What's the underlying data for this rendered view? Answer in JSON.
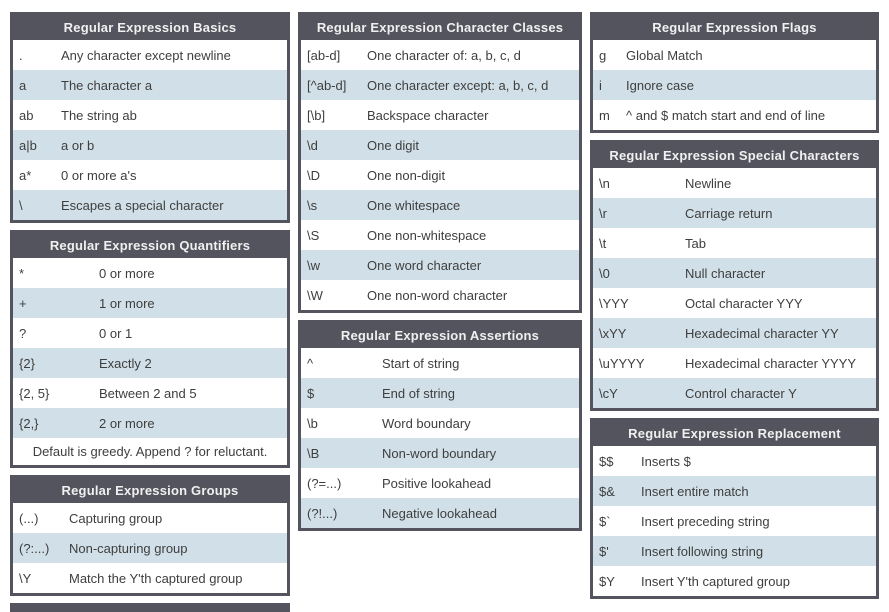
{
  "theme": {
    "header_bg": "#54545e",
    "border_color": "#54545e",
    "alt_row_bg": "#d1e0e8",
    "row_bg": "#ffffff",
    "text_color": "#3e3e3e",
    "header_text_color": "#f0f0f0"
  },
  "tables": {
    "basics": {
      "title": "Regular Expression Basics",
      "rows": [
        [
          ".",
          "Any character except newline"
        ],
        [
          "a",
          "The character a"
        ],
        [
          "ab",
          "The string ab"
        ],
        [
          "a|b",
          "a or b"
        ],
        [
          "a*",
          "0 or more a's"
        ],
        [
          "\\",
          "Escapes a special character"
        ]
      ]
    },
    "quantifiers": {
      "title": "Regular Expression Quantifiers",
      "rows": [
        [
          "*",
          "0 or more"
        ],
        [
          "+",
          "1 or more"
        ],
        [
          "?",
          "0 or 1"
        ],
        [
          "{2}",
          "Exactly 2"
        ],
        [
          "{2, 5}",
          "Between 2 and 5"
        ],
        [
          "{2,}",
          "2 or more"
        ]
      ],
      "note": "Default is greedy. Append ? for reluctant."
    },
    "groups": {
      "title": "Regular Expression Groups",
      "rows": [
        [
          "(...)",
          "Capturing group"
        ],
        [
          "(?:...)",
          "Non-capturing group"
        ],
        [
          "\\Y",
          "Match the Y'th captured group"
        ]
      ]
    },
    "character_classes": {
      "title": "Regular Expression Character Classes",
      "rows": [
        [
          "[ab-d]",
          "One character of: a, b, c, d"
        ],
        [
          "[^ab-d]",
          "One character except: a, b, c, d"
        ],
        [
          "[\\b]",
          "Backspace character"
        ],
        [
          "\\d",
          "One digit"
        ],
        [
          "\\D",
          "One non-digit"
        ],
        [
          "\\s",
          "One whitespace"
        ],
        [
          "\\S",
          "One non-whitespace"
        ],
        [
          "\\w",
          "One word character"
        ],
        [
          "\\W",
          "One non-word character"
        ]
      ]
    },
    "assertions": {
      "title": "Regular Expression Assertions",
      "rows": [
        [
          "^",
          "Start of string"
        ],
        [
          "$",
          "End of string"
        ],
        [
          "\\b",
          "Word boundary"
        ],
        [
          "\\B",
          "Non-word boundary"
        ],
        [
          "(?=...)",
          "Positive lookahead"
        ],
        [
          "(?!...)",
          "Negative lookahead"
        ]
      ]
    },
    "flags": {
      "title": "Regular Expression Flags",
      "rows": [
        [
          "g",
          "Global Match"
        ],
        [
          "i",
          "Ignore case"
        ],
        [
          "m",
          "^ and $ match start and end of line"
        ]
      ]
    },
    "special_characters": {
      "title": "Regular Expression Special Characters",
      "rows": [
        [
          "\\n",
          "Newline"
        ],
        [
          "\\r",
          "Carriage return"
        ],
        [
          "\\t",
          "Tab"
        ],
        [
          "\\0",
          "Null character"
        ],
        [
          "\\YYY",
          "Octal character YYY"
        ],
        [
          "\\xYY",
          "Hexadecimal character YY"
        ],
        [
          "\\uYYYY",
          "Hexadecimal character YYYY"
        ],
        [
          "\\cY",
          "Control character Y"
        ]
      ]
    },
    "replacement": {
      "title": "Regular Expression Replacement",
      "rows": [
        [
          "$$",
          "Inserts $"
        ],
        [
          "$&",
          "Insert entire match"
        ],
        [
          "$`",
          "Insert preceding string"
        ],
        [
          "$'",
          "Insert following string"
        ],
        [
          "$Y",
          "Insert Y'th captured group"
        ]
      ]
    }
  }
}
